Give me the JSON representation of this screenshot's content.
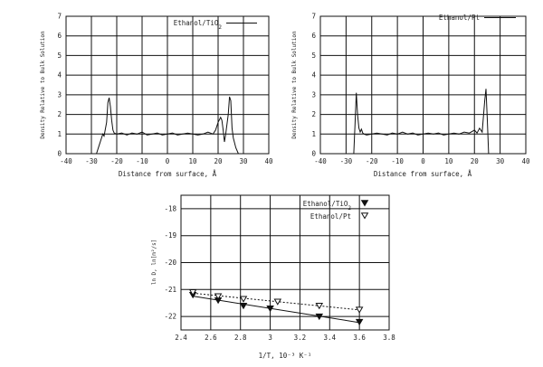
{
  "chart_data": [
    {
      "type": "line",
      "xlabel": "Distance from surface, Å",
      "ylabel": "Density Relative to Bulk Solution",
      "xlim": [
        -40,
        40
      ],
      "ylim": [
        0,
        7
      ],
      "xticks": [
        "-40",
        "-30",
        "-20",
        "-10",
        "0",
        "10",
        "20",
        "30",
        "40"
      ],
      "yticks": [
        "0",
        "1",
        "2",
        "3",
        "4",
        "5",
        "6",
        "7"
      ],
      "grid": true,
      "legend_position": "top-right",
      "series": [
        {
          "name": "Ethanol/TiO2",
          "x": [
            -28,
            -27,
            -26,
            -25.5,
            -25,
            -24,
            -23.5,
            -23,
            -22.5,
            -22,
            -21.5,
            -21,
            -20,
            -18,
            -16,
            -14,
            -12,
            -10,
            -8,
            -6,
            -4,
            -2,
            0,
            2,
            4,
            6,
            8,
            10,
            12,
            14,
            16,
            18,
            19,
            20,
            21,
            21.5,
            22,
            22.5,
            23,
            24,
            24.5,
            25,
            25.5,
            26,
            27,
            28
          ],
          "y": [
            0,
            0.4,
            0.8,
            1.0,
            0.9,
            1.6,
            2.6,
            2.85,
            2.4,
            1.7,
            1.2,
            1.05,
            1.0,
            1.05,
            0.95,
            1.05,
            1.0,
            1.1,
            0.95,
            1.0,
            1.05,
            0.95,
            1.0,
            1.05,
            0.95,
            1.0,
            1.05,
            1.0,
            0.95,
            1.0,
            1.1,
            1.0,
            1.2,
            1.6,
            1.85,
            1.7,
            1.2,
            0.6,
            1.0,
            2.0,
            2.9,
            2.7,
            1.3,
            0.8,
            0.3,
            0
          ]
        },
        {
          "name": "Ethanol/Pt",
          "x": [
            -27,
            -26.5,
            -26,
            -25.5,
            -25,
            -24.5,
            -24,
            -23.5,
            -23,
            -22,
            -20,
            -18,
            -16,
            -14,
            -12,
            -10,
            -8,
            -6,
            -4,
            -2,
            0,
            2,
            4,
            6,
            8,
            10,
            12,
            14,
            16,
            18,
            20,
            21,
            22,
            23,
            23.5,
            24,
            24.5,
            25,
            25.5
          ],
          "y": [
            0,
            1.5,
            3.1,
            2.0,
            1.3,
            1.1,
            1.25,
            1.05,
            1.0,
            0.95,
            1.0,
            1.05,
            1.0,
            0.95,
            1.05,
            1.0,
            1.1,
            1.0,
            1.05,
            0.95,
            1.0,
            1.05,
            1.0,
            1.05,
            0.95,
            1.0,
            1.05,
            1.0,
            1.1,
            1.05,
            1.2,
            1.05,
            1.3,
            1.1,
            1.9,
            2.7,
            3.3,
            1.8,
            0
          ]
        }
      ]
    },
    {
      "type": "scatter",
      "xlabel": "1/T, 10⁻³ K⁻¹",
      "ylabel": "ln D, ln[m²/s]",
      "xlim": [
        2.4,
        3.8
      ],
      "ylim": [
        -22.5,
        -17.5
      ],
      "xticks": [
        "2.4",
        "2.6",
        "2.8",
        "3",
        "3.2",
        "3.4",
        "3.6",
        "3.8"
      ],
      "yticks": [
        "-18",
        "-19",
        "-20",
        "-21",
        "-22"
      ],
      "grid": true,
      "legend_position": "top-right",
      "series": [
        {
          "name": "Ethanol/TiO2",
          "marker": "filled-triangle-down",
          "line": "solid",
          "x": [
            2.48,
            2.65,
            2.82,
            3.0,
            3.33,
            3.6
          ],
          "y": [
            -21.2,
            -21.4,
            -21.6,
            -21.7,
            -22.0,
            -22.2
          ]
        },
        {
          "name": "Ethanol/Pt",
          "marker": "open-triangle-down",
          "line": "dashed",
          "x": [
            2.48,
            2.65,
            2.82,
            3.05,
            3.33,
            3.6
          ],
          "y": [
            -21.1,
            -21.25,
            -21.35,
            -21.45,
            -21.6,
            -21.75
          ]
        }
      ]
    }
  ]
}
